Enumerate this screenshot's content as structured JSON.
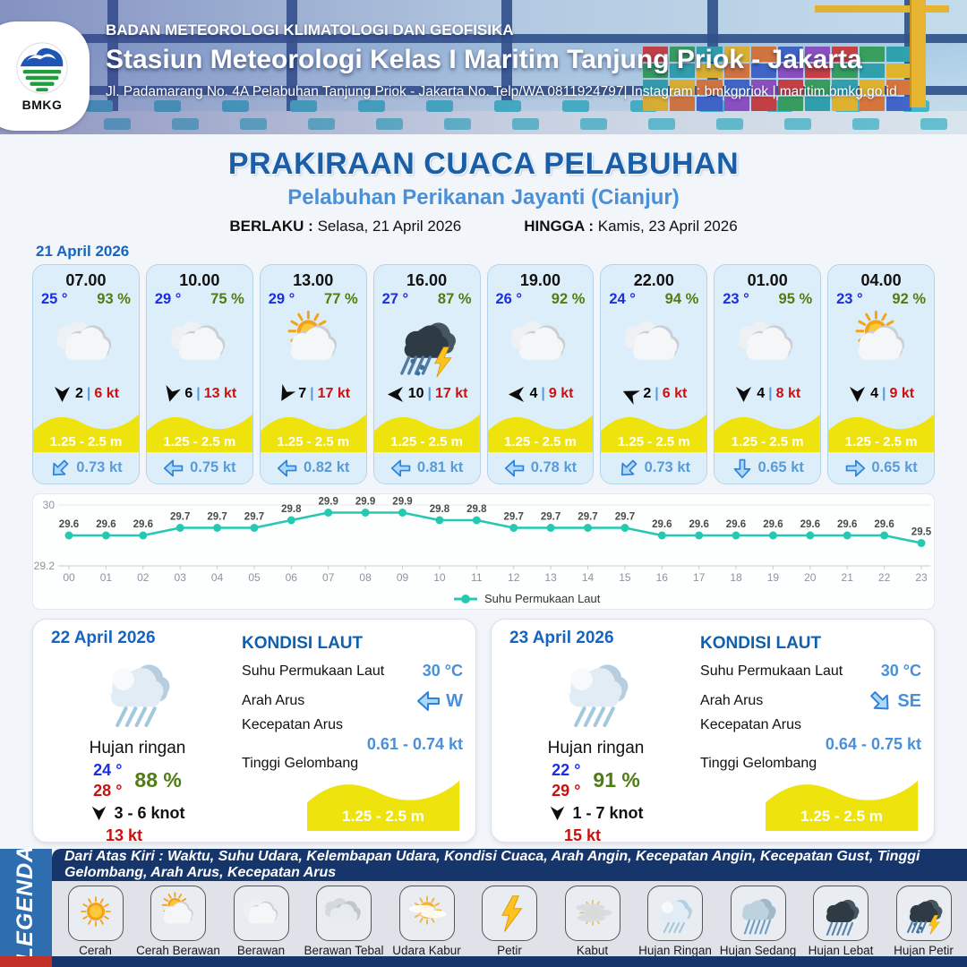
{
  "header": {
    "logo_text": "BMKG",
    "org": "BADAN METEOROLOGI KLIMATOLOGI DAN GEOFISIKA",
    "station": "Stasiun Meteorologi Kelas I Maritim Tanjung Priok - Jakarta",
    "address": "Jl. Padamarang No. 4A Pelabuhan Tanjung Priok - Jakarta No. Telp/WA 0811924797| Instagram : bmkgpriok | maritim.bmkg.go.id"
  },
  "title": {
    "main": "PRAKIRAAN CUACA PELABUHAN",
    "subtitle": "Pelabuhan Perikanan Jayanti (Cianjur)",
    "valid_from_label": "BERLAKU :",
    "valid_from": "Selasa, 21 April 2026",
    "valid_to_label": "HINGGA :",
    "valid_to": "Kamis, 23 April 2026"
  },
  "forecast_date": "21 April 2026",
  "cards": [
    {
      "time": "07.00",
      "temp": "25 °",
      "humidity": "93 %",
      "icon": "berawan",
      "wind_dir_deg": 90,
      "wind_val": "2",
      "wind_speed": "6 kt",
      "wave": "1.25 - 2.5 m",
      "current_dir_deg": 135,
      "current": "0.73 kt"
    },
    {
      "time": "10.00",
      "temp": "29 °",
      "humidity": "75 %",
      "icon": "berawan",
      "wind_dir_deg": 105,
      "wind_val": "6",
      "wind_speed": "13 kt",
      "wave": "1.25 - 2.5 m",
      "current_dir_deg": 180,
      "current": "0.75 kt"
    },
    {
      "time": "13.00",
      "temp": "29 °",
      "humidity": "77 %",
      "icon": "cerah-berawan",
      "wind_dir_deg": 120,
      "wind_val": "7",
      "wind_speed": "17 kt",
      "wave": "1.25 - 2.5 m",
      "current_dir_deg": 180,
      "current": "0.82 kt"
    },
    {
      "time": "16.00",
      "temp": "27 °",
      "humidity": "87 %",
      "icon": "hujan-petir",
      "wind_dir_deg": 180,
      "wind_val": "10",
      "wind_speed": "17 kt",
      "wave": "1.25 - 2.5 m",
      "current_dir_deg": 180,
      "current": "0.81 kt"
    },
    {
      "time": "19.00",
      "temp": "26 °",
      "humidity": "92 %",
      "icon": "berawan",
      "wind_dir_deg": 180,
      "wind_val": "4",
      "wind_speed": "9 kt",
      "wave": "1.25 - 2.5 m",
      "current_dir_deg": 180,
      "current": "0.78 kt"
    },
    {
      "time": "22.00",
      "temp": "24 °",
      "humidity": "94 %",
      "icon": "berawan",
      "wind_dir_deg": 205,
      "wind_val": "2",
      "wind_speed": "6 kt",
      "wave": "1.25 - 2.5 m",
      "current_dir_deg": 135,
      "current": "0.73 kt"
    },
    {
      "time": "01.00",
      "temp": "23 °",
      "humidity": "95 %",
      "icon": "berawan",
      "wind_dir_deg": 90,
      "wind_val": "4",
      "wind_speed": "8 kt",
      "wave": "1.25 - 2.5 m",
      "current_dir_deg": 90,
      "current": "0.65 kt"
    },
    {
      "time": "04.00",
      "temp": "23 °",
      "humidity": "92 %",
      "icon": "cerah-berawan",
      "wind_dir_deg": 90,
      "wind_val": "4",
      "wind_speed": "9 kt",
      "wave": "1.25 - 2.5 m",
      "current_dir_deg": 0,
      "current": "0.65 kt"
    }
  ],
  "chart_data": {
    "type": "line",
    "title": "",
    "series_name": "Suhu Permukaan Laut",
    "x": [
      "00",
      "01",
      "02",
      "03",
      "04",
      "05",
      "06",
      "07",
      "08",
      "09",
      "10",
      "11",
      "12",
      "13",
      "14",
      "15",
      "16",
      "17",
      "18",
      "19",
      "20",
      "21",
      "22",
      "23"
    ],
    "values": [
      29.6,
      29.6,
      29.6,
      29.7,
      29.7,
      29.7,
      29.8,
      29.9,
      29.9,
      29.9,
      29.8,
      29.8,
      29.7,
      29.7,
      29.7,
      29.7,
      29.6,
      29.6,
      29.6,
      29.6,
      29.6,
      29.6,
      29.6,
      29.5
    ],
    "ylim": [
      29.2,
      30
    ],
    "yticks": [
      29.2,
      30
    ],
    "grid": "top-line-only",
    "legend_position": "bottom",
    "line_color": "#25c9b2"
  },
  "day_panels": [
    {
      "date": "22 April 2026",
      "condition": "Hujan ringan",
      "icon": "hujan-ringan",
      "temp_min": "24 °",
      "temp_max": "28 °",
      "humidity": "88 %",
      "wind_range": "3 - 6 knot",
      "gust": "13 kt",
      "sea": {
        "heading": "KONDISI LAUT",
        "sst_label": "Suhu Permukaan Laut",
        "sst": "30 °C",
        "current_dir_label": "Arah Arus",
        "current_dir": "W",
        "current_dir_deg": 180,
        "current_speed_label": "Kecepatan Arus",
        "current_speed": "0.61 - 0.74 kt",
        "wave_label": "Tinggi Gelombang",
        "wave": "1.25 - 2.5 m"
      }
    },
    {
      "date": "23 April 2026",
      "condition": "Hujan ringan",
      "icon": "hujan-ringan",
      "temp_min": "22 °",
      "temp_max": "29 °",
      "humidity": "91 %",
      "wind_range": "1 - 7 knot",
      "gust": "15 kt",
      "sea": {
        "heading": "KONDISI LAUT",
        "sst_label": "Suhu Permukaan Laut",
        "sst": "30 °C",
        "current_dir_label": "Arah Arus",
        "current_dir": "SE",
        "current_dir_deg": 45,
        "current_speed_label": "Kecepatan Arus",
        "current_speed": "0.64 - 0.75 kt",
        "wave_label": "Tinggi Gelombang",
        "wave": "1.25 - 2.5 m"
      }
    }
  ],
  "legend": {
    "sidebar": "LEGENDA",
    "description": "Dari Atas Kiri : Waktu, Suhu Udara, Kelembapan Udara, Kondisi Cuaca, Arah Angin, Kecepatan Angin, Kecepatan Gust, Tinggi Gelombang, Arah Arus, Kecepatan Arus",
    "items": [
      {
        "label": "Cerah",
        "icon": "cerah"
      },
      {
        "label": "Cerah Berawan",
        "icon": "cerah-berawan"
      },
      {
        "label": "Berawan",
        "icon": "berawan"
      },
      {
        "label": "Berawan Tebal",
        "icon": "berawan-tebal"
      },
      {
        "label": "Udara Kabur",
        "icon": "udara-kabur"
      },
      {
        "label": "Petir",
        "icon": "petir"
      },
      {
        "label": "Kabut",
        "icon": "kabut"
      },
      {
        "label": "Hujan Ringan",
        "icon": "hujan-ringan"
      },
      {
        "label": "Hujan Sedang",
        "icon": "hujan-sedang"
      },
      {
        "label": "Hujan Lebat",
        "icon": "hujan-lebat"
      },
      {
        "label": "Hujan Petir",
        "icon": "hujan-petir"
      }
    ]
  },
  "colors": {
    "accent_blue": "#1b5ea8",
    "sub_blue": "#4a90d9",
    "temp_blue": "#1a2fe0",
    "humidity_green": "#4e7d11",
    "wind_red": "#cc1010",
    "wave_yellow": "#efe30e",
    "chart_teal": "#25c9b2",
    "legend_navy": "#16366b",
    "legend_blue": "#2d6db0"
  }
}
